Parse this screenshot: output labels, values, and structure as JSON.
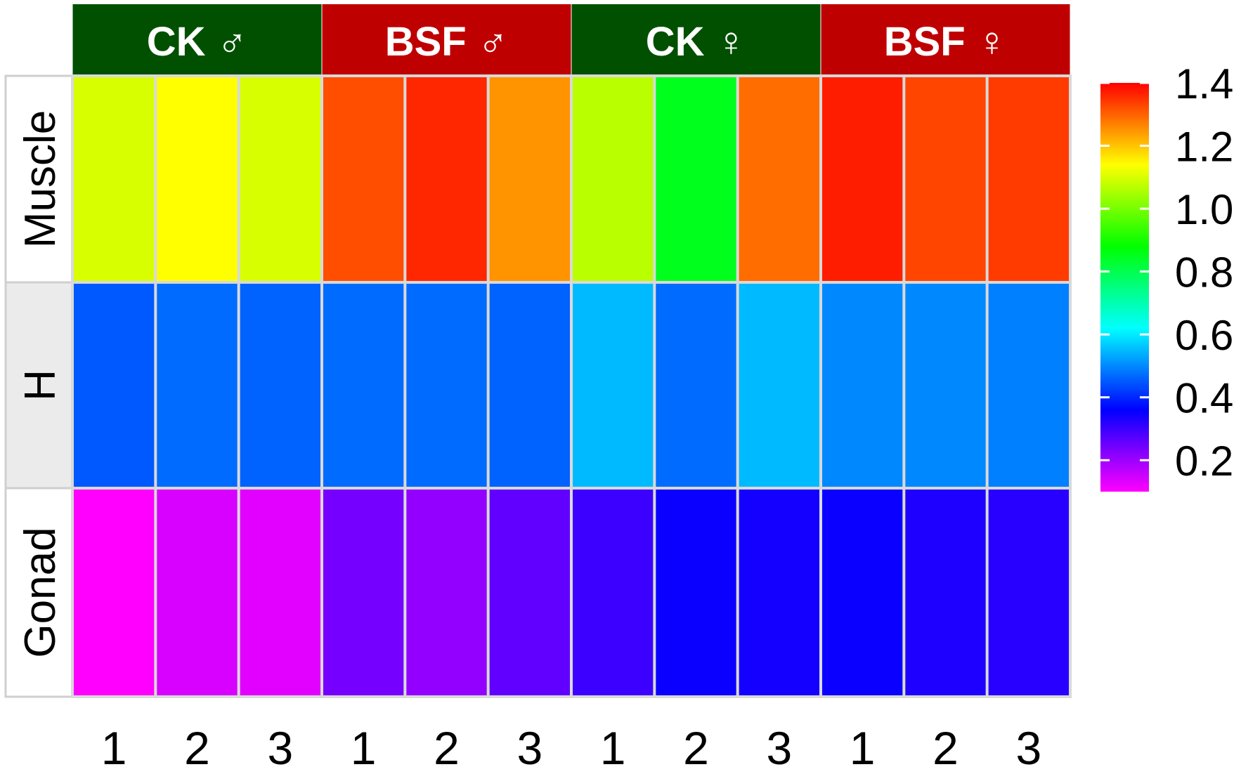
{
  "chart_data": {
    "type": "heatmap",
    "title": "",
    "xlabel": "",
    "ylabel": "",
    "column_groups": [
      {
        "label": "CK ♂",
        "color": "#005000",
        "columns": 3
      },
      {
        "label": "BSF ♂",
        "color": "#BF0000",
        "columns": 3
      },
      {
        "label": "CK ♀",
        "color": "#005000",
        "columns": 3
      },
      {
        "label": "BSF ♀",
        "color": "#BF0000",
        "columns": 3
      }
    ],
    "column_labels": [
      "1",
      "2",
      "3",
      "1",
      "2",
      "3",
      "1",
      "2",
      "3",
      "1",
      "2",
      "3"
    ],
    "rows": [
      {
        "label": "Muscle",
        "label_bg": "#FFFFFF",
        "values": [
          1.1,
          1.14,
          1.1,
          1.32,
          1.36,
          1.25,
          1.07,
          0.85,
          1.29,
          1.37,
          1.33,
          1.34
        ]
      },
      {
        "label": "H",
        "label_bg": "#EBEBEB",
        "values": [
          0.45,
          0.47,
          0.46,
          0.47,
          0.47,
          0.46,
          0.55,
          0.47,
          0.55,
          0.5,
          0.5,
          0.49
        ]
      },
      {
        "label": "Gonad",
        "label_bg": "#FFFFFF",
        "values": [
          0.1,
          0.14,
          0.13,
          0.24,
          0.21,
          0.26,
          0.3,
          0.35,
          0.34,
          0.35,
          0.33,
          0.32
        ]
      }
    ],
    "colorbar": {
      "min": 0.1,
      "max": 1.4,
      "ticks": [
        0.2,
        0.4,
        0.6,
        0.8,
        1.0,
        1.2,
        1.4
      ],
      "tick_labels": [
        "0.2",
        "0.4",
        "0.6",
        "0.8",
        "1.0",
        "1.2",
        "1.4"
      ],
      "colors": [
        "#FF00FF",
        "#0000FF",
        "#00FFFF",
        "#00FF00",
        "#FFFF00",
        "#FF0000"
      ],
      "legend_position": "right"
    }
  }
}
